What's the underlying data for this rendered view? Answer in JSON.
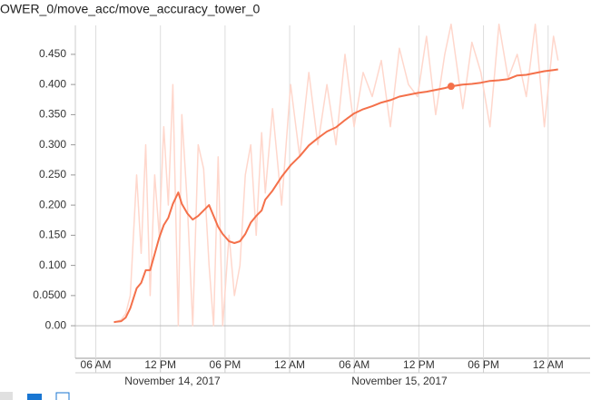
{
  "chart_data": {
    "type": "line",
    "title": "OWER_0/move_acc/move_accuracy_tower_0",
    "x": [
      7.68,
      8.36,
      8.78,
      9.2,
      9.79,
      10.21,
      10.63,
      11.05,
      11.47,
      11.89,
      12.31,
      12.73,
      13.15,
      13.66,
      13.99,
      14.5,
      15.0,
      15.51,
      16.01,
      16.52,
      16.94,
      17.36,
      17.78,
      18.37,
      18.87,
      19.38,
      19.88,
      20.39,
      20.89,
      21.4,
      21.74,
      22.41,
      23.25,
      24.09,
      24.93,
      25.78,
      26.62,
      27.46,
      28.3,
      29.14,
      29.98,
      30.82,
      31.67,
      32.51,
      33.35,
      34.19,
      35.03,
      35.87,
      36.71,
      37.56,
      38.4,
      38.99,
      40.08,
      40.92,
      41.76,
      42.6,
      43.44,
      44.29,
      45.13,
      45.97,
      46.81,
      47.65,
      48.5,
      48.92
    ],
    "series": [
      {
        "color": "#ffd7cc",
        "values": [
          0.005,
          0.01,
          0.02,
          0.05,
          0.25,
          0.12,
          0.3,
          0.05,
          0.25,
          0.15,
          0.33,
          0.2,
          0.4,
          0.0,
          0.35,
          0.2,
          0.0,
          0.3,
          0.26,
          0.1,
          0.0,
          0.28,
          0.0,
          0.15,
          0.05,
          0.1,
          0.25,
          0.3,
          0.15,
          0.32,
          0.22,
          0.36,
          0.2,
          0.4,
          0.28,
          0.42,
          0.3,
          0.4,
          0.3,
          0.45,
          0.33,
          0.42,
          0.38,
          0.44,
          0.33,
          0.46,
          0.4,
          0.38,
          0.48,
          0.35,
          0.45,
          0.5,
          0.36,
          0.47,
          0.42,
          0.33,
          0.5,
          0.41,
          0.45,
          0.38,
          0.5,
          0.33,
          0.48,
          0.44
        ]
      },
      {
        "color": "#f4704a",
        "values": [
          0.006,
          0.0075,
          0.0135,
          0.029,
          0.062,
          0.071,
          0.092,
          0.092,
          0.119,
          0.146,
          0.167,
          0.179,
          0.202,
          0.221,
          0.202,
          0.186,
          0.176,
          0.182,
          0.191,
          0.2,
          0.182,
          0.164,
          0.152,
          0.14,
          0.137,
          0.14,
          0.152,
          0.171,
          0.182,
          0.191,
          0.209,
          0.224,
          0.247,
          0.266,
          0.281,
          0.299,
          0.311,
          0.322,
          0.329,
          0.341,
          0.352,
          0.359,
          0.364,
          0.37,
          0.374,
          0.38,
          0.383,
          0.386,
          0.388,
          0.391,
          0.394,
          0.397,
          0.4,
          0.401,
          0.403,
          0.406,
          0.407,
          0.409,
          0.415,
          0.416,
          0.419,
          0.422,
          0.424,
          0.425
        ]
      }
    ],
    "highlight_index": 51,
    "xlim": [
      4.1,
      51.9
    ],
    "ylim": [
      -0.054,
      0.498
    ],
    "xticks": [
      {
        "value": 6,
        "label": "06 AM"
      },
      {
        "value": 12,
        "label": "12 PM"
      },
      {
        "value": 18,
        "label": "06 PM"
      },
      {
        "value": 24,
        "label": "12 AM"
      },
      {
        "value": 30,
        "label": "06 AM"
      },
      {
        "value": 36,
        "label": "12 PM"
      },
      {
        "value": 42,
        "label": "06 PM"
      },
      {
        "value": 48,
        "label": "12 AM"
      }
    ],
    "yticks": [
      {
        "value": 0,
        "label": "0.00"
      },
      {
        "value": 0.05,
        "label": "0.0500"
      },
      {
        "value": 0.1,
        "label": "0.100"
      },
      {
        "value": 0.15,
        "label": "0.150"
      },
      {
        "value": 0.2,
        "label": "0.200"
      },
      {
        "value": 0.25,
        "label": "0.250"
      },
      {
        "value": 0.3,
        "label": "0.300"
      },
      {
        "value": 0.35,
        "label": "0.350"
      },
      {
        "value": 0.4,
        "label": "0.400"
      },
      {
        "value": 0.45,
        "label": "0.450"
      }
    ],
    "date_labels": [
      "November 14, 2017",
      "November 15, 2017"
    ],
    "grid": true
  }
}
